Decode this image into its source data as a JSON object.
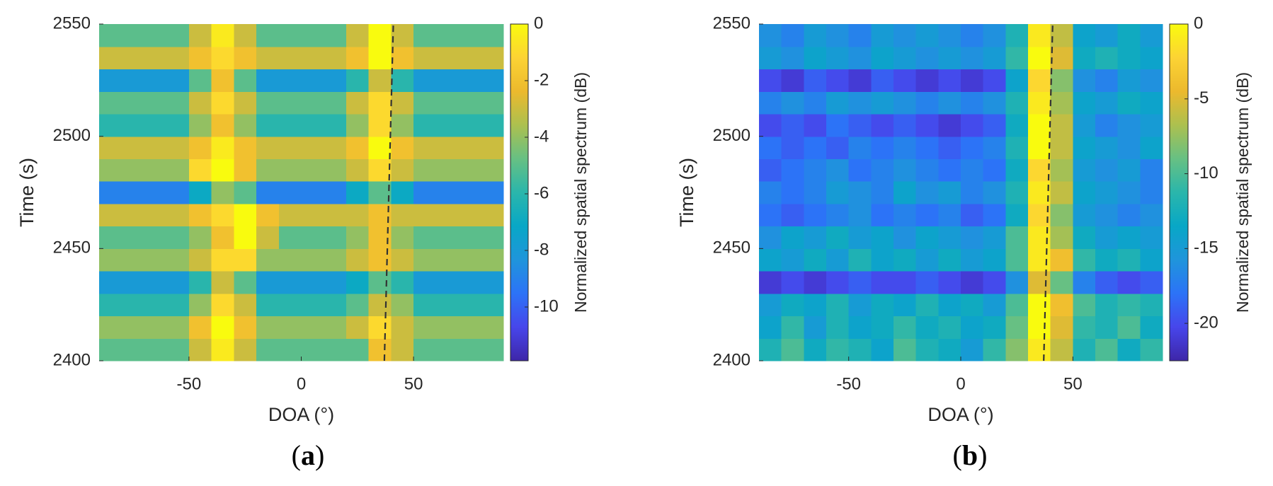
{
  "chart_data": [
    {
      "type": "heatmap",
      "panel_label": "(a)",
      "xlabel": "DOA (°)",
      "ylabel": "Time (s)",
      "colorbar_label": "Normalized spatial spectrum (dB)",
      "xlim": [
        -90,
        90
      ],
      "ylim": [
        2400,
        2550
      ],
      "xticks": [
        -50,
        0,
        50
      ],
      "yticks": [
        2400,
        2450,
        2500,
        2550
      ],
      "clim": [
        -11.9,
        0
      ],
      "cticks": [
        -10,
        -8,
        -6,
        -4,
        -2,
        0
      ],
      "colormap": [
        "#3e26a8",
        "#4746eb",
        "#2c73f7",
        "#1f95db",
        "#08a7c6",
        "#2ab6ab",
        "#67c083",
        "#acc04f",
        "#ecb92d",
        "#fcd334",
        "#f9fb0e"
      ],
      "x": [
        -85,
        -75,
        -65,
        -55,
        -45,
        -35,
        -25,
        -15,
        -5,
        5,
        15,
        25,
        35,
        45,
        55,
        65,
        75,
        85
      ],
      "y": [
        2405,
        2415,
        2425,
        2435,
        2445,
        2455,
        2465,
        2475,
        2485,
        2495,
        2505,
        2515,
        2525,
        2535,
        2545
      ],
      "z": [
        [
          -5,
          -5,
          -5,
          -5,
          -3,
          -0.5,
          -3,
          -5,
          -5,
          -5,
          -5,
          -5,
          -2,
          -3,
          -5,
          -5,
          -5,
          -5
        ],
        [
          -4,
          -4,
          -4,
          -4,
          -2,
          0,
          -2,
          -4,
          -4,
          -4,
          -4,
          -3,
          -1,
          -3,
          -4,
          -4,
          -4,
          -4
        ],
        [
          -6,
          -6,
          -6,
          -6,
          -4,
          -1,
          -3,
          -6,
          -6,
          -6,
          -6,
          -5,
          -3,
          -4,
          -6,
          -6,
          -6,
          -6
        ],
        [
          -8,
          -8,
          -8,
          -8,
          -6,
          -3,
          -5,
          -8,
          -8,
          -8,
          -8,
          -7,
          -5,
          -6,
          -8,
          -8,
          -8,
          -8
        ],
        [
          -4,
          -4,
          -4,
          -4,
          -3,
          -1,
          -1,
          -4,
          -4,
          -4,
          -4,
          -3,
          -2,
          -3,
          -4,
          -4,
          -4,
          -4
        ],
        [
          -5,
          -5,
          -5,
          -5,
          -4,
          -2,
          0,
          -3,
          -5,
          -5,
          -5,
          -4,
          -2,
          -4,
          -5,
          -5,
          -5,
          -5
        ],
        [
          -3,
          -3,
          -3,
          -3,
          -2,
          -1,
          0,
          -2,
          -3,
          -3,
          -3,
          -3,
          -2,
          -3,
          -3,
          -3,
          -3,
          -3
        ],
        [
          -9,
          -9,
          -9,
          -9,
          -7,
          -4,
          -5,
          -9,
          -9,
          -9,
          -9,
          -7,
          -5,
          -7,
          -9,
          -9,
          -9,
          -9
        ],
        [
          -4,
          -4,
          -4,
          -4,
          -1,
          0,
          -2,
          -4,
          -4,
          -4,
          -4,
          -3,
          -1,
          -3,
          -4,
          -4,
          -4,
          -4
        ],
        [
          -3,
          -3,
          -3,
          -3,
          -2,
          -0.5,
          -2,
          -3,
          -3,
          -3,
          -3,
          -2,
          0,
          -2,
          -3,
          -3,
          -3,
          -3
        ],
        [
          -6,
          -6,
          -6,
          -6,
          -4,
          -2,
          -4,
          -6,
          -6,
          -6,
          -6,
          -4,
          -1,
          -4,
          -6,
          -6,
          -6,
          -6
        ],
        [
          -5,
          -5,
          -5,
          -5,
          -3,
          -1,
          -3,
          -5,
          -5,
          -5,
          -5,
          -3,
          -1,
          -3,
          -5,
          -5,
          -5,
          -5
        ],
        [
          -8,
          -8,
          -8,
          -8,
          -5,
          -2,
          -5,
          -8,
          -8,
          -8,
          -8,
          -6,
          -3,
          -6,
          -8,
          -8,
          -8,
          -8
        ],
        [
          -3,
          -3,
          -3,
          -3,
          -2,
          -1,
          -2,
          -3,
          -3,
          -3,
          -3,
          -2,
          0,
          -2,
          -3,
          -3,
          -3,
          -3
        ],
        [
          -5,
          -5,
          -5,
          -5,
          -3,
          -0.5,
          -3,
          -5,
          -5,
          -5,
          -5,
          -3,
          0,
          -3,
          -5,
          -5,
          -5,
          -5
        ]
      ],
      "reference_line": {
        "x": [
          37,
          41
        ],
        "y": [
          2400,
          2550
        ],
        "color": "#333333"
      }
    },
    {
      "type": "heatmap",
      "panel_label": "(b)",
      "xlabel": "DOA (°)",
      "ylabel": "Time (s)",
      "colorbar_label": "Normalized spatial spectrum (dB)",
      "xlim": [
        -90,
        90
      ],
      "ylim": [
        2400,
        2550
      ],
      "xticks": [
        -50,
        0,
        50
      ],
      "yticks": [
        2400,
        2450,
        2500,
        2550
      ],
      "clim": [
        -22.5,
        0
      ],
      "cticks": [
        -20,
        -15,
        -10,
        -5,
        0
      ],
      "colormap": [
        "#3e26a8",
        "#4746eb",
        "#2c73f7",
        "#1f95db",
        "#08a7c6",
        "#2ab6ab",
        "#67c083",
        "#acc04f",
        "#ecb92d",
        "#fcd334",
        "#f9fb0e"
      ],
      "x": [
        -85,
        -75,
        -65,
        -55,
        -45,
        -35,
        -25,
        -15,
        -5,
        5,
        15,
        25,
        35,
        45,
        55,
        65,
        75,
        85
      ],
      "y": [
        2405,
        2415,
        2425,
        2435,
        2445,
        2455,
        2465,
        2475,
        2485,
        2495,
        2505,
        2515,
        2525,
        2535,
        2545
      ],
      "z": [
        [
          -12,
          -10,
          -13,
          -11,
          -12,
          -14,
          -10,
          -12,
          -13,
          -15,
          -11,
          -8,
          -1,
          -6,
          -12,
          -10,
          -13,
          -11
        ],
        [
          -14,
          -11,
          -15,
          -12,
          -14,
          -13,
          -11,
          -13,
          -12,
          -14,
          -13,
          -9,
          0,
          -5,
          -11,
          -12,
          -10,
          -13
        ],
        [
          -15,
          -13,
          -14,
          -12,
          -15,
          -13,
          -14,
          -12,
          -14,
          -13,
          -15,
          -10,
          0,
          -4,
          -10,
          -12,
          -11,
          -12
        ],
        [
          -21,
          -20,
          -21,
          -20,
          -19,
          -20,
          -20,
          -19,
          -20,
          -21,
          -20,
          -16,
          -5,
          -9,
          -17,
          -19,
          -20,
          -19
        ],
        [
          -14,
          -15,
          -13,
          -15,
          -12,
          -14,
          -13,
          -15,
          -13,
          -15,
          -14,
          -10,
          -1,
          -4,
          -11,
          -13,
          -12,
          -14
        ],
        [
          -16,
          -14,
          -15,
          -13,
          -15,
          -14,
          -16,
          -14,
          -15,
          -16,
          -15,
          -10,
          -1,
          -7,
          -13,
          -15,
          -14,
          -15
        ],
        [
          -18,
          -19,
          -18,
          -17,
          -16,
          -18,
          -17,
          -18,
          -17,
          -19,
          -18,
          -13,
          -2,
          -8,
          -15,
          -16,
          -17,
          -16
        ],
        [
          -17,
          -18,
          -17,
          -15,
          -16,
          -17,
          -14,
          -16,
          -15,
          -17,
          -16,
          -12,
          -1,
          -6,
          -14,
          -15,
          -16,
          -17
        ],
        [
          -19,
          -18,
          -17,
          -16,
          -18,
          -17,
          -16,
          -17,
          -18,
          -17,
          -18,
          -13,
          -2,
          -7,
          -15,
          -16,
          -15,
          -17
        ],
        [
          -18,
          -19,
          -18,
          -19,
          -17,
          -18,
          -17,
          -18,
          -19,
          -18,
          -17,
          -12,
          0,
          -6,
          -14,
          -15,
          -16,
          -14
        ],
        [
          -20,
          -19,
          -20,
          -18,
          -19,
          -20,
          -19,
          -20,
          -21,
          -20,
          -19,
          -13,
          0,
          -6,
          -15,
          -17,
          -16,
          -15
        ],
        [
          -17,
          -16,
          -17,
          -15,
          -16,
          -15,
          -16,
          -17,
          -16,
          -17,
          -16,
          -12,
          -1,
          -7,
          -14,
          -15,
          -13,
          -14
        ],
        [
          -20,
          -21,
          -19,
          -20,
          -21,
          -19,
          -20,
          -21,
          -20,
          -21,
          -20,
          -14,
          -2,
          -8,
          -16,
          -17,
          -15,
          -16
        ],
        [
          -15,
          -16,
          -14,
          -15,
          -16,
          -14,
          -15,
          -16,
          -15,
          -16,
          -15,
          -11,
          0,
          -5,
          -13,
          -12,
          -13,
          -14
        ],
        [
          -16,
          -17,
          -15,
          -16,
          -17,
          -15,
          -16,
          -15,
          -16,
          -17,
          -16,
          -12,
          -1,
          -6,
          -14,
          -15,
          -13,
          -15
        ]
      ],
      "reference_line": {
        "x": [
          37,
          41
        ],
        "y": [
          2400,
          2550
        ],
        "color": "#333333"
      }
    }
  ]
}
